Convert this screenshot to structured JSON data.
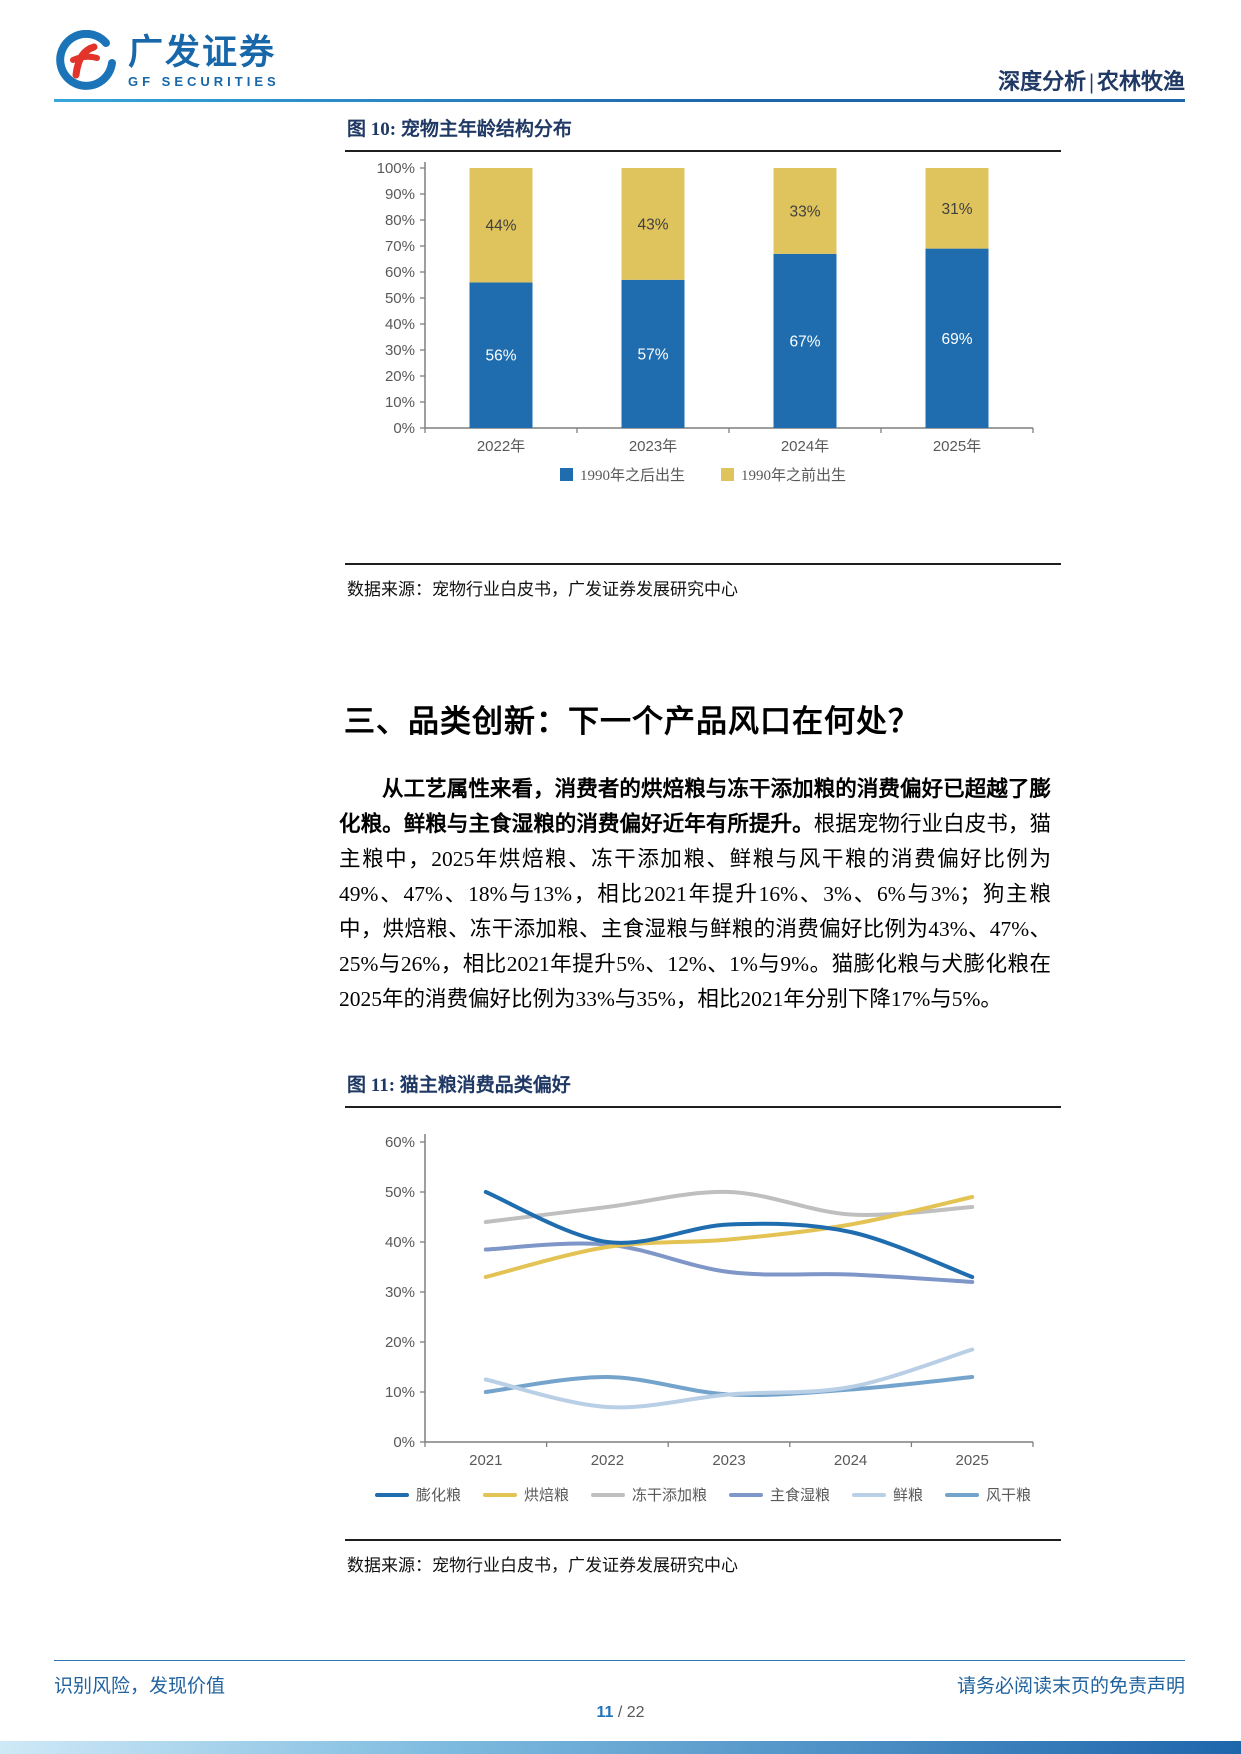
{
  "header": {
    "brand_cn": "广发证券",
    "brand_en": "GF SECURITIES",
    "doc_type": "深度分析",
    "divider": "|",
    "sector": "农林牧渔"
  },
  "figure10": {
    "title": "图 10: 宠物主年龄结构分布",
    "source": "数据来源：宠物行业白皮书，广发证券发展研究中心"
  },
  "section": {
    "heading": "三、品类创新：下一个产品风口在何处？"
  },
  "paragraph": {
    "bold": "从工艺属性来看，消费者的烘焙粮与冻干添加粮的消费偏好已超越了膨化粮。鲜粮与主食湿粮的消费偏好近年有所提升。",
    "regular": "根据宠物行业白皮书，猫主粮中，2025年烘焙粮、冻干添加粮、鲜粮与风干粮的消费偏好比例为49%、47%、18%与13%，相比2021年提升16%、3%、6%与3%；狗主粮中，烘焙粮、冻干添加粮、主食湿粮与鲜粮的消费偏好比例为43%、47%、25%与26%，相比2021年提升5%、12%、1%与9%。猫膨化粮与犬膨化粮在2025年的消费偏好比例为33%与35%，相比2021年分别下降17%与5%。"
  },
  "figure11": {
    "title": "图 11: 猫主粮消费品类偏好",
    "source": "数据来源：宠物行业白皮书，广发证券发展研究中心"
  },
  "footer": {
    "left": "识别风险，发现价值",
    "right": "请务必阅读末页的免责声明",
    "page_current": "11",
    "page_sep": "/",
    "page_total": "22"
  },
  "colors": {
    "brand_blue": "#1767A9",
    "navy": "#1F3864",
    "rule_blue": "#1E66AC",
    "footer_blue": "#21639F",
    "bar_blue": "#1F6DAE",
    "bar_yellow": "#DFC35D"
  },
  "chart_data": [
    {
      "type": "bar",
      "stacked": true,
      "title": "宠物主年龄结构分布",
      "categories": [
        "2022年",
        "2023年",
        "2024年",
        "2025年"
      ],
      "series": [
        {
          "name": "1990年之后出生",
          "color": "#1F6DAE",
          "values": [
            56,
            57,
            67,
            69
          ]
        },
        {
          "name": "1990年之前出生",
          "color": "#DFC35D",
          "values": [
            44,
            43,
            33,
            31
          ]
        }
      ],
      "ylabel": "",
      "xlabel": "",
      "ylim": [
        0,
        100
      ],
      "ytick_step": 10,
      "ytick_format": "percent",
      "grid": false,
      "legend_position": "bottom"
    },
    {
      "type": "line",
      "title": "猫主粮消费品类偏好",
      "x": [
        "2021",
        "2022",
        "2023",
        "2024",
        "2025"
      ],
      "series": [
        {
          "name": "膨化粮",
          "color": "#1F6DAE",
          "width": 4,
          "values": [
            50,
            40,
            43.5,
            42,
            33
          ]
        },
        {
          "name": "烘焙粮",
          "color": "#E3C353",
          "width": 4,
          "values": [
            33,
            39,
            40.5,
            43.5,
            49
          ]
        },
        {
          "name": "冻干添加粮",
          "color": "#BFBFBF",
          "width": 4,
          "values": [
            44,
            47,
            50,
            45.5,
            47
          ]
        },
        {
          "name": "主食湿粮",
          "color": "#7E96C8",
          "width": 4,
          "values": [
            38.5,
            39.5,
            34,
            33.5,
            32
          ]
        },
        {
          "name": "鲜粮",
          "color": "#B9CFE6",
          "width": 4,
          "values": [
            12.5,
            7,
            9.5,
            11,
            18.5
          ]
        },
        {
          "name": "风干粮",
          "color": "#74A3CC",
          "width": 4,
          "values": [
            10,
            13,
            9.5,
            10.5,
            13
          ]
        }
      ],
      "ylabel": "",
      "xlabel": "",
      "ylim": [
        0,
        60
      ],
      "ytick_step": 10,
      "ytick_format": "percent",
      "grid": false,
      "legend_position": "bottom"
    }
  ]
}
